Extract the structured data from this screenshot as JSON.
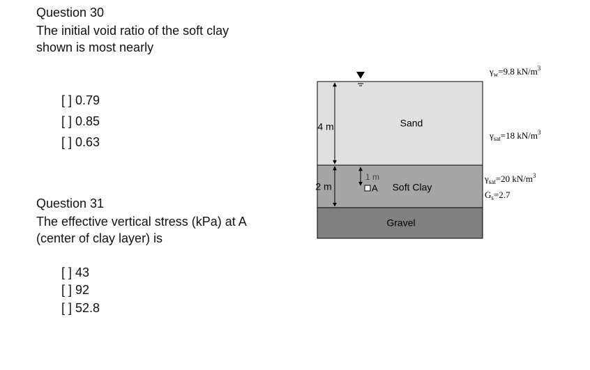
{
  "questions": [
    {
      "title": "Question 30",
      "text": "The initial void ratio of the soft clay shown is most nearly",
      "options": [
        "[ ] 0.79",
        "[ ] 0.85",
        "[ ] 0.63"
      ]
    },
    {
      "title": "Question 31",
      "text": "The effective vertical stress (kPa) at A (center of clay layer) is",
      "options": [
        "[ ] 43",
        "[ ] 92",
        "[ ] 52.8"
      ]
    }
  ],
  "diagram": {
    "layers": [
      "Sand",
      "Soft Clay",
      "Gravel"
    ],
    "dimensions": [
      "4 m",
      "2 m",
      "1 m"
    ],
    "point": "A",
    "properties": [
      {
        "symbol": "γ",
        "sub": "w",
        "text": "=9.8 kN/m",
        "sup": "3"
      },
      {
        "symbol": "γ",
        "sub": "sat",
        "text": "=18 kN/m",
        "sup": "3"
      },
      {
        "symbol": "γ",
        "sub": "sat",
        "text": "=20 kN/m",
        "sup": "3"
      },
      {
        "symbol": "G",
        "sub": "s",
        "text": "=2.7",
        "sup": ""
      }
    ]
  }
}
